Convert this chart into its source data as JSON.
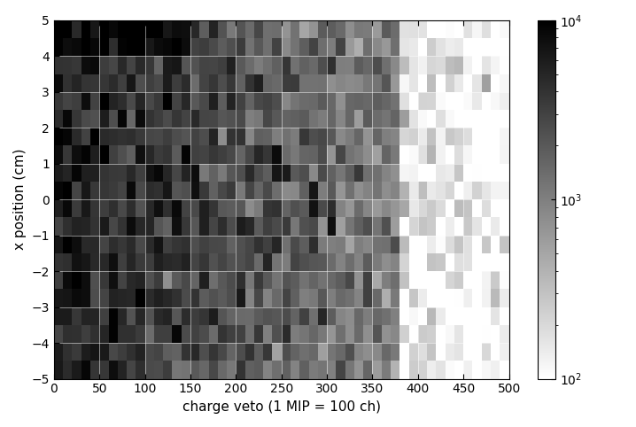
{
  "xlabel": "charge veto (1 MIP = 100 ch)",
  "ylabel": "x position (cm)",
  "xlim": [
    0,
    500
  ],
  "ylim": [
    -5,
    5
  ],
  "vmin": 100,
  "vmax": 10000,
  "nx_bins": 50,
  "ny_bins": 20,
  "cmap": "gray_r",
  "figsize": [
    7.18,
    4.82
  ],
  "dpi": 100,
  "xticks": [
    0,
    50,
    100,
    150,
    200,
    250,
    300,
    350,
    400,
    450,
    500
  ],
  "yticks": [
    -5,
    -4,
    -3,
    -2,
    -1,
    0,
    1,
    2,
    3,
    4,
    5
  ],
  "colorbar_ticks": [
    100,
    1000,
    10000
  ],
  "grid_color": "white",
  "grid_alpha": 0.7,
  "xlabel_fontsize": 11,
  "ylabel_fontsize": 11
}
